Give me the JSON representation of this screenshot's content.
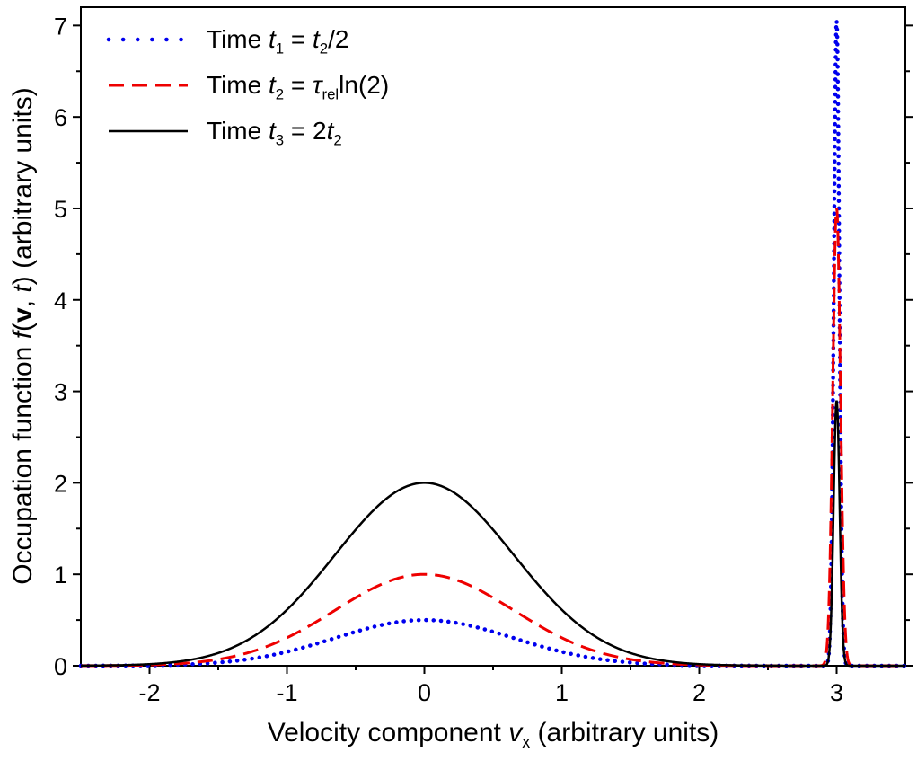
{
  "figure": {
    "background": "#ffffff",
    "axis_color": "#000000"
  },
  "chart_data": {
    "type": "line",
    "title": "",
    "xlabel_segments": [
      {
        "t": "Velocity component "
      },
      {
        "t": "v",
        "italic": true
      },
      {
        "t": "x",
        "sub": true
      },
      {
        "t": " (arbitrary units)"
      }
    ],
    "ylabel_segments": [
      {
        "t": "Occupation function "
      },
      {
        "t": "f",
        "italic": true
      },
      {
        "t": "("
      },
      {
        "t": "v",
        "bold": true
      },
      {
        "t": ", "
      },
      {
        "t": "t",
        "italic": true
      },
      {
        "t": ") (arbitrary units)"
      }
    ],
    "xlim": [
      -2.5,
      3.5
    ],
    "ylim": [
      0,
      7.2
    ],
    "x_major_ticks": [
      -2,
      -1,
      0,
      1,
      2,
      3
    ],
    "y_major_ticks": [
      0,
      1,
      2,
      3,
      4,
      5,
      6,
      7
    ],
    "minor_tick_step": 0.5,
    "grid": false,
    "legend_position": "top-left",
    "axis_color": "#000000",
    "series": [
      {
        "name": "t1",
        "legend_segments": [
          {
            "t": "Time "
          },
          {
            "t": "t",
            "italic": true
          },
          {
            "t": "1",
            "sub": true
          },
          {
            "t": " = "
          },
          {
            "t": "t",
            "italic": true
          },
          {
            "t": "2",
            "sub": true
          },
          {
            "t": "/2"
          }
        ],
        "color": "#0000ee",
        "line_style": "dotted",
        "stroke_width": 4.5,
        "dash": "0.1 8.2",
        "components": [
          {
            "center": 0,
            "amplitude": 0.5,
            "sigma": 0.65
          },
          {
            "center": 3,
            "amplitude": 7.05,
            "sigma": 0.02
          }
        ]
      },
      {
        "name": "t2",
        "legend_segments": [
          {
            "t": "Time "
          },
          {
            "t": "t",
            "italic": true
          },
          {
            "t": "2",
            "sub": true
          },
          {
            "t": " = "
          },
          {
            "t": "τ",
            "italic": true
          },
          {
            "t": "rel",
            "sub": true
          },
          {
            "t": "ln(2)"
          }
        ],
        "color": "#ee0000",
        "line_style": "dashed",
        "stroke_width": 3,
        "dash": "17 9",
        "components": [
          {
            "center": 0,
            "amplitude": 1.0,
            "sigma": 0.65
          },
          {
            "center": 3,
            "amplitude": 5.0,
            "sigma": 0.028
          }
        ]
      },
      {
        "name": "t3",
        "legend_segments": [
          {
            "t": "Time "
          },
          {
            "t": "t",
            "italic": true
          },
          {
            "t": "3",
            "sub": true
          },
          {
            "t": " = 2"
          },
          {
            "t": "t",
            "italic": true
          },
          {
            "t": "2",
            "sub": true
          }
        ],
        "color": "#000000",
        "line_style": "solid",
        "stroke_width": 2.5,
        "dash": "",
        "components": [
          {
            "center": 0,
            "amplitude": 2.0,
            "sigma": 0.65
          },
          {
            "center": 3,
            "amplitude": 2.9,
            "sigma": 0.022
          }
        ]
      }
    ]
  }
}
